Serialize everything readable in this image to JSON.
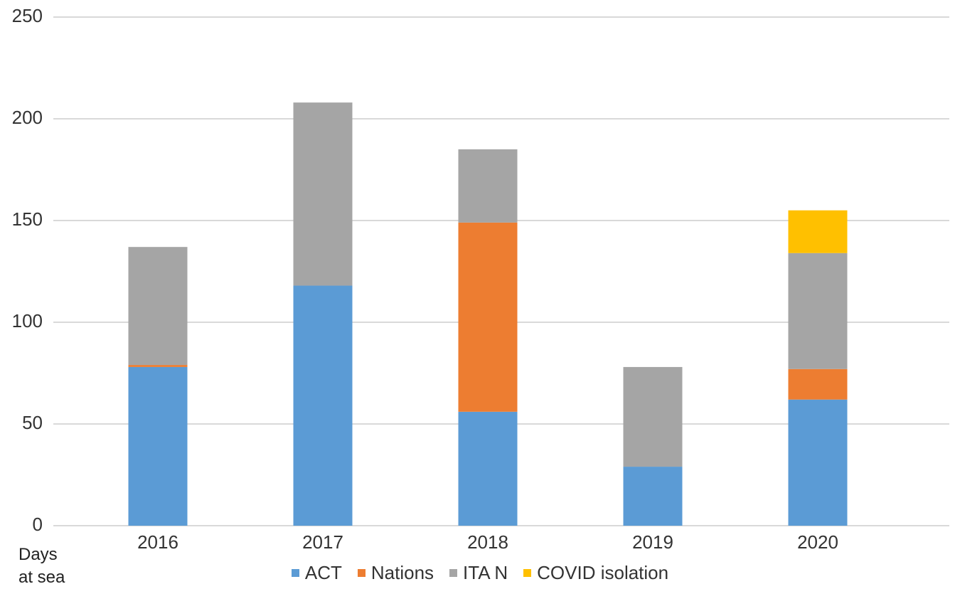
{
  "chart_data": {
    "type": "stacked-bar",
    "y_label": "Days at sea",
    "categories": [
      "2016",
      "2017",
      "2018",
      "2019",
      "2020"
    ],
    "series": [
      {
        "name": "ACT",
        "color": "#5b9bd5",
        "values": [
          78,
          118,
          56,
          29,
          62
        ]
      },
      {
        "name": "Nations",
        "color": "#ed7d31",
        "values": [
          1,
          0,
          93,
          0,
          15
        ]
      },
      {
        "name": "ITA N",
        "color": "#a5a5a5",
        "values": [
          58,
          90,
          36,
          49,
          57
        ]
      },
      {
        "name": "COVID isolation",
        "color": "#ffc000",
        "values": [
          0,
          0,
          0,
          0,
          21
        ]
      }
    ],
    "ylim": [
      0,
      250
    ],
    "yticks": [
      0,
      50,
      100,
      150,
      200,
      250
    ],
    "grid": true,
    "legend": "bottom"
  }
}
